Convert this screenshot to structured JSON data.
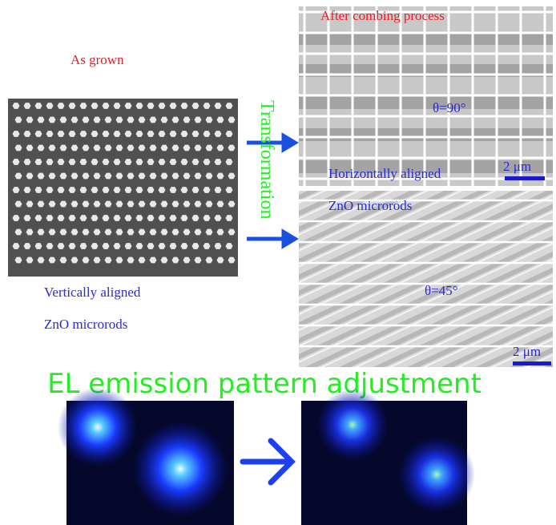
{
  "as_grown": {
    "label": "As grown",
    "caption_line1": "Vertically aligned",
    "caption_line2": "ZnO microrods"
  },
  "transformation": "Transformation",
  "combed_90": {
    "label": "After combing process",
    "angle": "θ=90°",
    "caption_line1": "Horizontally aligned",
    "caption_line2": "ZnO microrods",
    "scale": "2 μm"
  },
  "combed_45": {
    "angle": "θ=45°",
    "scale": "2 μm"
  },
  "el_title": "EL emission pattern adjustment"
}
